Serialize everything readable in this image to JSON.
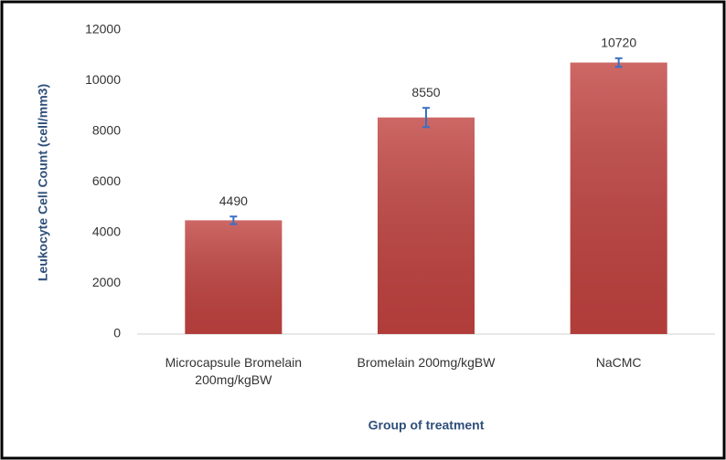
{
  "chart_data": {
    "type": "bar",
    "y_label": "Leukocyte Cell Count (cell/mm3)",
    "x_label": "Group of treatment",
    "categories": [
      "Microcapsule Bromelain 200mg/kgBW",
      "Bromelain 200mg/kgBW",
      "NaCMC"
    ],
    "values": [
      4490,
      8550,
      10720
    ],
    "errors": [
      150,
      380,
      170
    ],
    "color": "#c0423f",
    "error_color": "#3a6fc4",
    "ylim": [
      0,
      12000
    ],
    "yticks": [
      0,
      2000,
      4000,
      6000,
      8000,
      10000,
      12000
    ],
    "grid": false
  }
}
